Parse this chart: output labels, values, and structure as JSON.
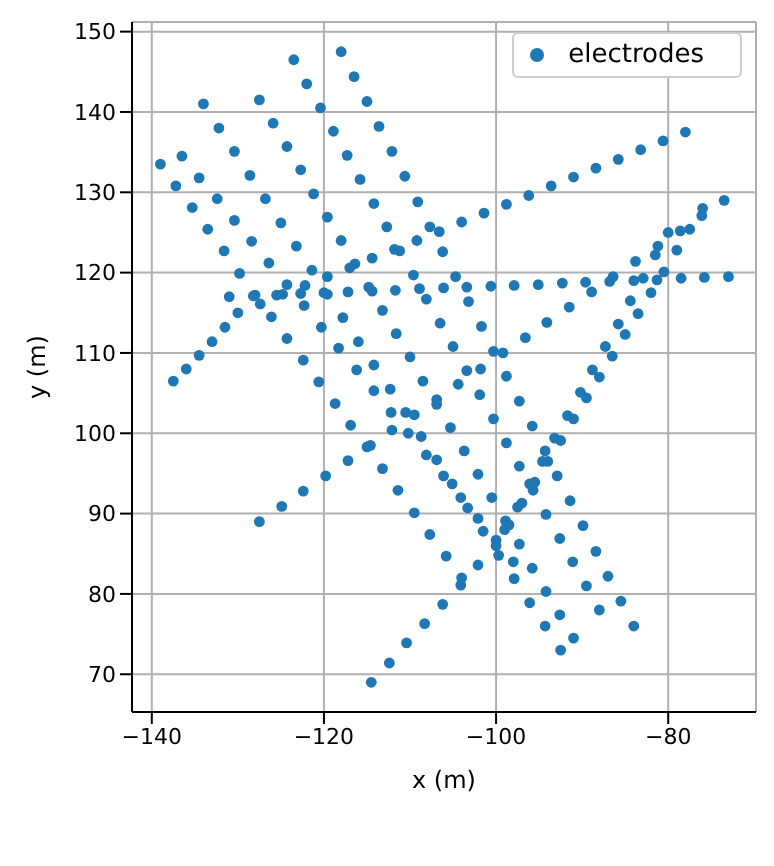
{
  "chart_data": {
    "type": "scatter",
    "xlabel": "x (m)",
    "ylabel": "y (m)",
    "xlim": [
      -142.3,
      -69.8
    ],
    "ylim": [
      65.3,
      151.2
    ],
    "xticks": [
      -140,
      -120,
      -100,
      -80
    ],
    "yticks": [
      70,
      80,
      90,
      100,
      110,
      120,
      130,
      140,
      150
    ],
    "grid": true,
    "legend": "top right",
    "marker": "circle",
    "series": [
      {
        "name": "electrodes",
        "color": "#1f77b4",
        "x": [
          -139,
          -137.2,
          -135.3,
          -133.5,
          -131.6,
          -129.8,
          -128,
          -126.1,
          -124.3,
          -122.4,
          -120.6,
          -118.7,
          -116.9,
          -115,
          -113.2,
          -111.4,
          -109.5,
          -107.7,
          -105.8,
          -104,
          -136.5,
          -134.5,
          -132.4,
          -130.4,
          -128.4,
          -126.4,
          -124.3,
          -122.3,
          -120.3,
          -118.3,
          -116.2,
          -114.2,
          -112.2,
          -110.2,
          -108.1,
          -106.1,
          -104.1,
          -102.1,
          -100,
          -98,
          -134,
          -132.2,
          -130.4,
          -128.6,
          -126.8,
          -125,
          -123.2,
          -121.4,
          -119.6,
          -117.8,
          -116,
          -114.2,
          -112.3,
          -110.5,
          -108.7,
          -106.9,
          -105.1,
          -103.3,
          -101.5,
          -99.7,
          -97.9,
          -96.1,
          -94.3,
          -92.5,
          -127.5,
          -125.9,
          -124.3,
          -122.7,
          -121.2,
          -119.6,
          -118,
          -116.4,
          -114.8,
          -113.2,
          -111.6,
          -110,
          -108.5,
          -106.9,
          -105.3,
          -103.7,
          -102.1,
          -100.5,
          -98.9,
          -97.3,
          -95.8,
          -94.2,
          -92.6,
          -91,
          -123.5,
          -122,
          -120.4,
          -118.9,
          -117.3,
          -115.8,
          -114.2,
          -112.7,
          -111.2,
          -109.6,
          -108.1,
          -106.5,
          -105,
          -103.4,
          -101.9,
          -100.3,
          -98.8,
          -97.3,
          -95.7,
          -94.2,
          -92.6,
          -91.1,
          -89.5,
          -88,
          -118,
          -116.5,
          -115,
          -113.6,
          -112.1,
          -110.6,
          -109.1,
          -107.7,
          -106.2,
          -104.7,
          -103.2,
          -101.7,
          -100.3,
          -98.8,
          -97.3,
          -95.8,
          -94.3,
          -92.9,
          -91.4,
          -89.9,
          -88.4,
          -87,
          -85.5,
          -84,
          -137.5,
          -136,
          -134.5,
          -133,
          -131.5,
          -130,
          -127.4,
          -124.8,
          -122.2,
          -119.6,
          -117,
          -114.4,
          -111.8,
          -109.2,
          -106.6,
          -104,
          -101.4,
          -98.8,
          -96.2,
          -93.6,
          -91,
          -88.4,
          -85.8,
          -83.2,
          -80.6,
          -78,
          -131,
          -128.2,
          -125.5,
          -122.7,
          -120,
          -117.2,
          -114.4,
          -111.7,
          -108.9,
          -106.1,
          -103.4,
          -100.6,
          -97.9,
          -95.1,
          -92.3,
          -89.6,
          -86.8,
          -84,
          -81.3,
          -78.5,
          -75.8,
          -73,
          -127.5,
          -124.9,
          -122.4,
          -119.8,
          -117.2,
          -114.6,
          -112.1,
          -109.5,
          -106.9,
          -104.4,
          -101.8,
          -99.2,
          -96.6,
          -94.1,
          -91.5,
          -88.9,
          -86.4,
          -83.8,
          -81.2,
          -78.6,
          -76.1,
          -73.5,
          -114.5,
          -112.4,
          -110.4,
          -108.3,
          -106.2,
          -104.1,
          -102.1,
          -100,
          -98.5,
          -97,
          -95.5,
          -94,
          -92.5,
          -91,
          -89.5,
          -88,
          -86.5,
          -85,
          -83.5,
          -82,
          -80.5,
          -79,
          -77.5,
          -76,
          -99,
          -97.5,
          -96.1,
          -94.6,
          -93.2,
          -91.7,
          -90.2,
          -88.8,
          -87.3,
          -85.8,
          -84.4,
          -82.9,
          -81.5,
          -80
        ],
        "values": [
          133.5,
          130.8,
          128.1,
          125.4,
          122.7,
          119.9,
          117.2,
          114.5,
          111.8,
          109.1,
          106.4,
          103.7,
          101,
          98.3,
          95.6,
          92.9,
          90.1,
          87.4,
          84.7,
          82,
          134.5,
          131.8,
          129.2,
          126.5,
          123.9,
          121.2,
          118.5,
          115.9,
          113.2,
          110.6,
          107.9,
          105.3,
          102.6,
          100,
          97.3,
          94.7,
          92,
          89.4,
          86.7,
          84,
          141,
          138,
          135.1,
          132.1,
          129.2,
          126.2,
          123.3,
          120.3,
          117.3,
          114.4,
          111.4,
          108.5,
          105.5,
          102.6,
          99.6,
          96.7,
          93.7,
          90.7,
          87.8,
          84.8,
          81.9,
          78.9,
          76,
          73,
          141.5,
          138.6,
          135.7,
          132.8,
          129.8,
          126.9,
          124,
          121.1,
          118.2,
          115.3,
          112.4,
          109.5,
          106.5,
          103.6,
          100.7,
          97.8,
          94.9,
          92,
          89.1,
          86.2,
          83.2,
          80.3,
          77.4,
          74.5,
          146.5,
          143.5,
          140.5,
          137.6,
          134.6,
          131.6,
          128.6,
          125.7,
          122.7,
          119.7,
          116.7,
          113.7,
          110.8,
          107.8,
          104.8,
          101.8,
          98.8,
          95.9,
          92.9,
          89.9,
          86.9,
          84,
          81,
          78,
          147.5,
          144.4,
          141.3,
          138.2,
          135.1,
          132,
          128.8,
          125.7,
          122.6,
          119.5,
          116.4,
          113.3,
          110.2,
          107.1,
          104,
          100.9,
          97.8,
          94.7,
          91.6,
          88.5,
          85.3,
          82.2,
          79.1,
          76,
          106.5,
          108,
          109.7,
          111.4,
          113.2,
          115,
          116.1,
          117.3,
          118.4,
          119.5,
          120.6,
          121.8,
          122.9,
          124,
          125.1,
          126.3,
          127.4,
          128.5,
          129.6,
          130.8,
          131.9,
          133,
          134.1,
          135.3,
          136.4,
          137.5,
          117,
          117.1,
          117.2,
          117.4,
          117.5,
          117.6,
          117.7,
          117.8,
          118,
          118.1,
          118.2,
          118.3,
          118.4,
          118.5,
          118.7,
          118.8,
          118.9,
          119,
          119.1,
          119.3,
          119.4,
          119.5,
          89,
          90.9,
          92.8,
          94.7,
          96.6,
          98.5,
          100.4,
          102.3,
          104.2,
          106.1,
          108,
          110,
          111.9,
          113.8,
          115.7,
          117.6,
          119.5,
          121.4,
          123.3,
          125.2,
          127.1,
          129,
          69,
          71.4,
          73.9,
          76.3,
          78.7,
          81.1,
          83.6,
          86,
          88.6,
          91.3,
          93.9,
          96.5,
          99.1,
          101.8,
          104.4,
          107,
          109.6,
          112.3,
          114.9,
          117.5,
          120.1,
          122.8,
          125.4,
          128,
          88,
          90.8,
          93.7,
          96.5,
          99.4,
          102.2,
          105.1,
          107.9,
          110.8,
          113.6,
          116.5,
          119.3,
          122.2,
          125
        ]
      }
    ]
  }
}
